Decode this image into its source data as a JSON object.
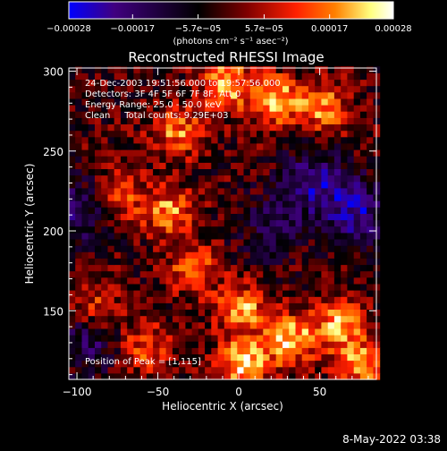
{
  "chart_data": {
    "type": "heatmap",
    "title": "Reconstructed RHESSI Image",
    "xlabel": "Heliocentric X (arcsec)",
    "ylabel": "Heliocentric Y (arcsec)",
    "xlim": [
      -105,
      85
    ],
    "ylim": [
      107,
      302
    ],
    "x_ticks": [
      -100,
      -50,
      0,
      50
    ],
    "y_ticks": [
      150,
      200,
      250,
      300
    ],
    "x_tick_labels": [
      "−100",
      "−50",
      "0",
      "50"
    ],
    "y_tick_labels": [
      "150",
      "200",
      "250",
      "300"
    ],
    "colorbar": {
      "range": [
        -0.00028,
        0.00028
      ],
      "tick_values": [
        -0.00028,
        -0.00017,
        -5.7e-05,
        5.7e-05,
        0.00017,
        0.00028
      ],
      "tick_labels": [
        "−0.00028",
        "−0.00017",
        "−5.7e−05",
        "5.7e−05",
        "0.00017",
        "0.00028"
      ],
      "units_label": "(photons cm⁻² s⁻¹ asec⁻²)",
      "colors": [
        "#0000ff",
        "#400080",
        "#000000",
        "#800000",
        "#ff2000",
        "#ff8000",
        "#ffff80",
        "#ffffff"
      ]
    },
    "annotations": [
      "24-Dec-2003 19:51:56.000 to 19:57:56.000",
      "Detectors: 3F 4F 5F 6F 7F 8F, Att 0",
      "Energy Range: 25.0 - 50.0 keV",
      "Clean     Total counts: 9.29E+03"
    ],
    "peak_label": "Position of Peak = [1,115]",
    "peak": [
      1,
      115
    ],
    "bright_sources": [
      {
        "x": -10,
        "y": 290,
        "v": 0.00022
      },
      {
        "x": 20,
        "y": 280,
        "v": 0.00024
      },
      {
        "x": 50,
        "y": 275,
        "v": 0.0002
      },
      {
        "x": -40,
        "y": 260,
        "v": 0.00018
      },
      {
        "x": -75,
        "y": 220,
        "v": 0.00016
      },
      {
        "x": -45,
        "y": 210,
        "v": 0.00019
      },
      {
        "x": -30,
        "y": 175,
        "v": 0.00017
      },
      {
        "x": -90,
        "y": 150,
        "v": 0.00015
      },
      {
        "x": 0,
        "y": 150,
        "v": 0.00021
      },
      {
        "x": 1,
        "y": 115,
        "v": 0.00028
      },
      {
        "x": 30,
        "y": 130,
        "v": 0.00024
      },
      {
        "x": 60,
        "y": 140,
        "v": 0.00022
      },
      {
        "x": 75,
        "y": 115,
        "v": 0.0002
      },
      {
        "x": -60,
        "y": 125,
        "v": 0.00016
      }
    ],
    "negative_regions": [
      {
        "x": 45,
        "y": 230,
        "v": -0.00017
      },
      {
        "x": 70,
        "y": 210,
        "v": -0.00019
      },
      {
        "x": -100,
        "y": 210,
        "v": -0.00015
      },
      {
        "x": -95,
        "y": 130,
        "v": -0.00014
      },
      {
        "x": 20,
        "y": 200,
        "v": -0.00012
      }
    ]
  },
  "footer": {
    "timestamp": "8-May-2022 03:38"
  }
}
